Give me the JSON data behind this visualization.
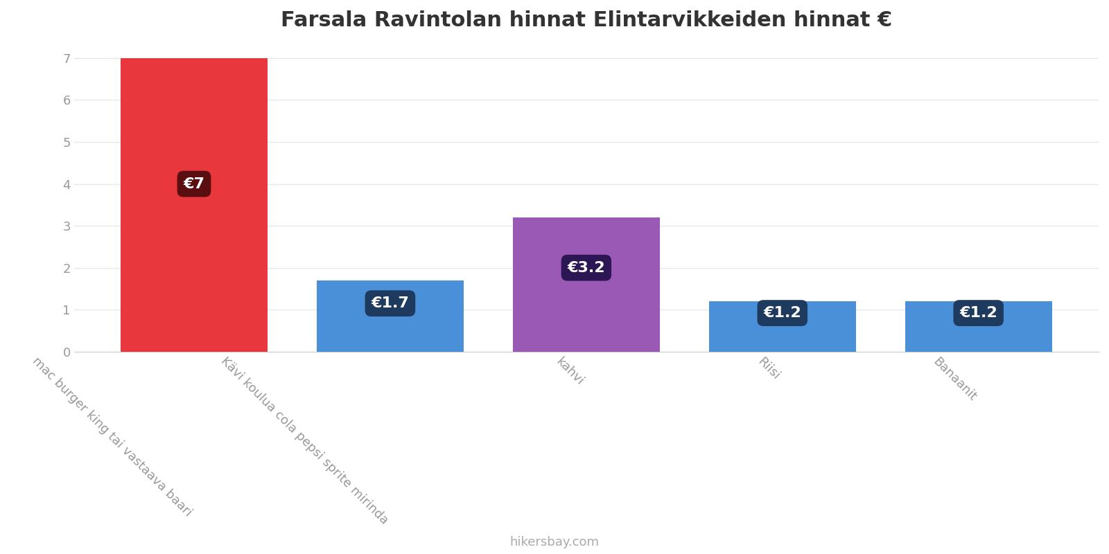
{
  "title": "Farsala Ravintolan hinnat Elintarvikkeiden hinnat €",
  "categories": [
    "mac burger king tai vastaava baari",
    "Kävi koulua cola pepsi sprite mirinda",
    "kahvi",
    "Riisi",
    "Banaanit"
  ],
  "values": [
    7.0,
    1.7,
    3.2,
    1.2,
    1.2
  ],
  "bar_colors": [
    "#e8383d",
    "#4a90d9",
    "#9b59b6",
    "#4a90d9",
    "#4a90d9"
  ],
  "label_texts": [
    "€7",
    "€1.7",
    "€3.2",
    "€1.2",
    "€1.2"
  ],
  "label_bg_colors": [
    "#5a0e10",
    "#1e3a5f",
    "#2c1654",
    "#1e3a5f",
    "#1e3a5f"
  ],
  "label_y_positions": [
    4.0,
    1.15,
    2.0,
    0.92,
    0.92
  ],
  "ylim": [
    0,
    7.3
  ],
  "yticks": [
    0,
    1,
    2,
    3,
    4,
    5,
    6,
    7
  ],
  "footer_text": "hikersbay.com",
  "title_fontsize": 22,
  "tick_fontsize": 13,
  "label_fontsize": 16,
  "footer_fontsize": 13,
  "background_color": "#ffffff",
  "grid_color": "#e8e8e8",
  "bar_width": 0.75
}
